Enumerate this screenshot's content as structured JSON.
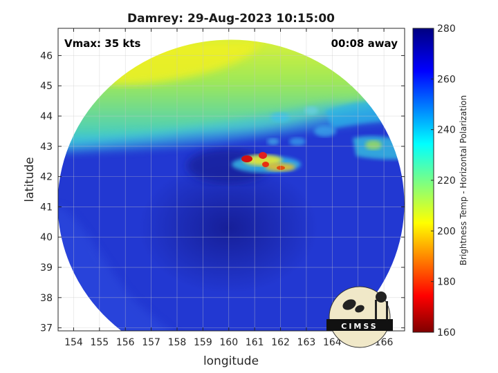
{
  "title": "Damrey: 29-Aug-2023 10:15:00",
  "vmax_label": "Vmax: 35 kts",
  "time_away_label": "00:08 away",
  "logo_text": "CIMSS",
  "colors": {
    "deep_blue": "#16189a",
    "blue": "#2236d6",
    "cyan": "#27c8e4",
    "green_yellow": "#bfee40",
    "yellow": "#f4f418",
    "red": "#d21010"
  },
  "chart_data": {
    "type": "heatmap",
    "xlabel": "longitude",
    "ylabel": "latitude",
    "xlim": [
      153.4,
      166.8
    ],
    "ylim": [
      36.9,
      46.9
    ],
    "xticks": [
      154,
      155,
      156,
      157,
      158,
      159,
      160,
      161,
      162,
      163,
      164,
      165,
      166
    ],
    "yticks": [
      37,
      38,
      39,
      40,
      41,
      42,
      43,
      44,
      45,
      46
    ],
    "grid": true,
    "colorbar": {
      "label": "Brightness Temp - Horizontal Polarization",
      "range": [
        160,
        280
      ],
      "ticks": [
        160,
        180,
        200,
        220,
        240,
        260,
        280
      ],
      "colormap": "jet"
    },
    "features": [
      {
        "name": "warm region (upper-left)",
        "lon": 156.5,
        "lat": 45.2,
        "temp": 212
      },
      {
        "name": "cold convective cells",
        "lon": 161.5,
        "lat": 42.5,
        "temp": 175
      },
      {
        "name": "storm center region",
        "lon": 160.5,
        "lat": 40.0,
        "temp": 268
      }
    ]
  }
}
